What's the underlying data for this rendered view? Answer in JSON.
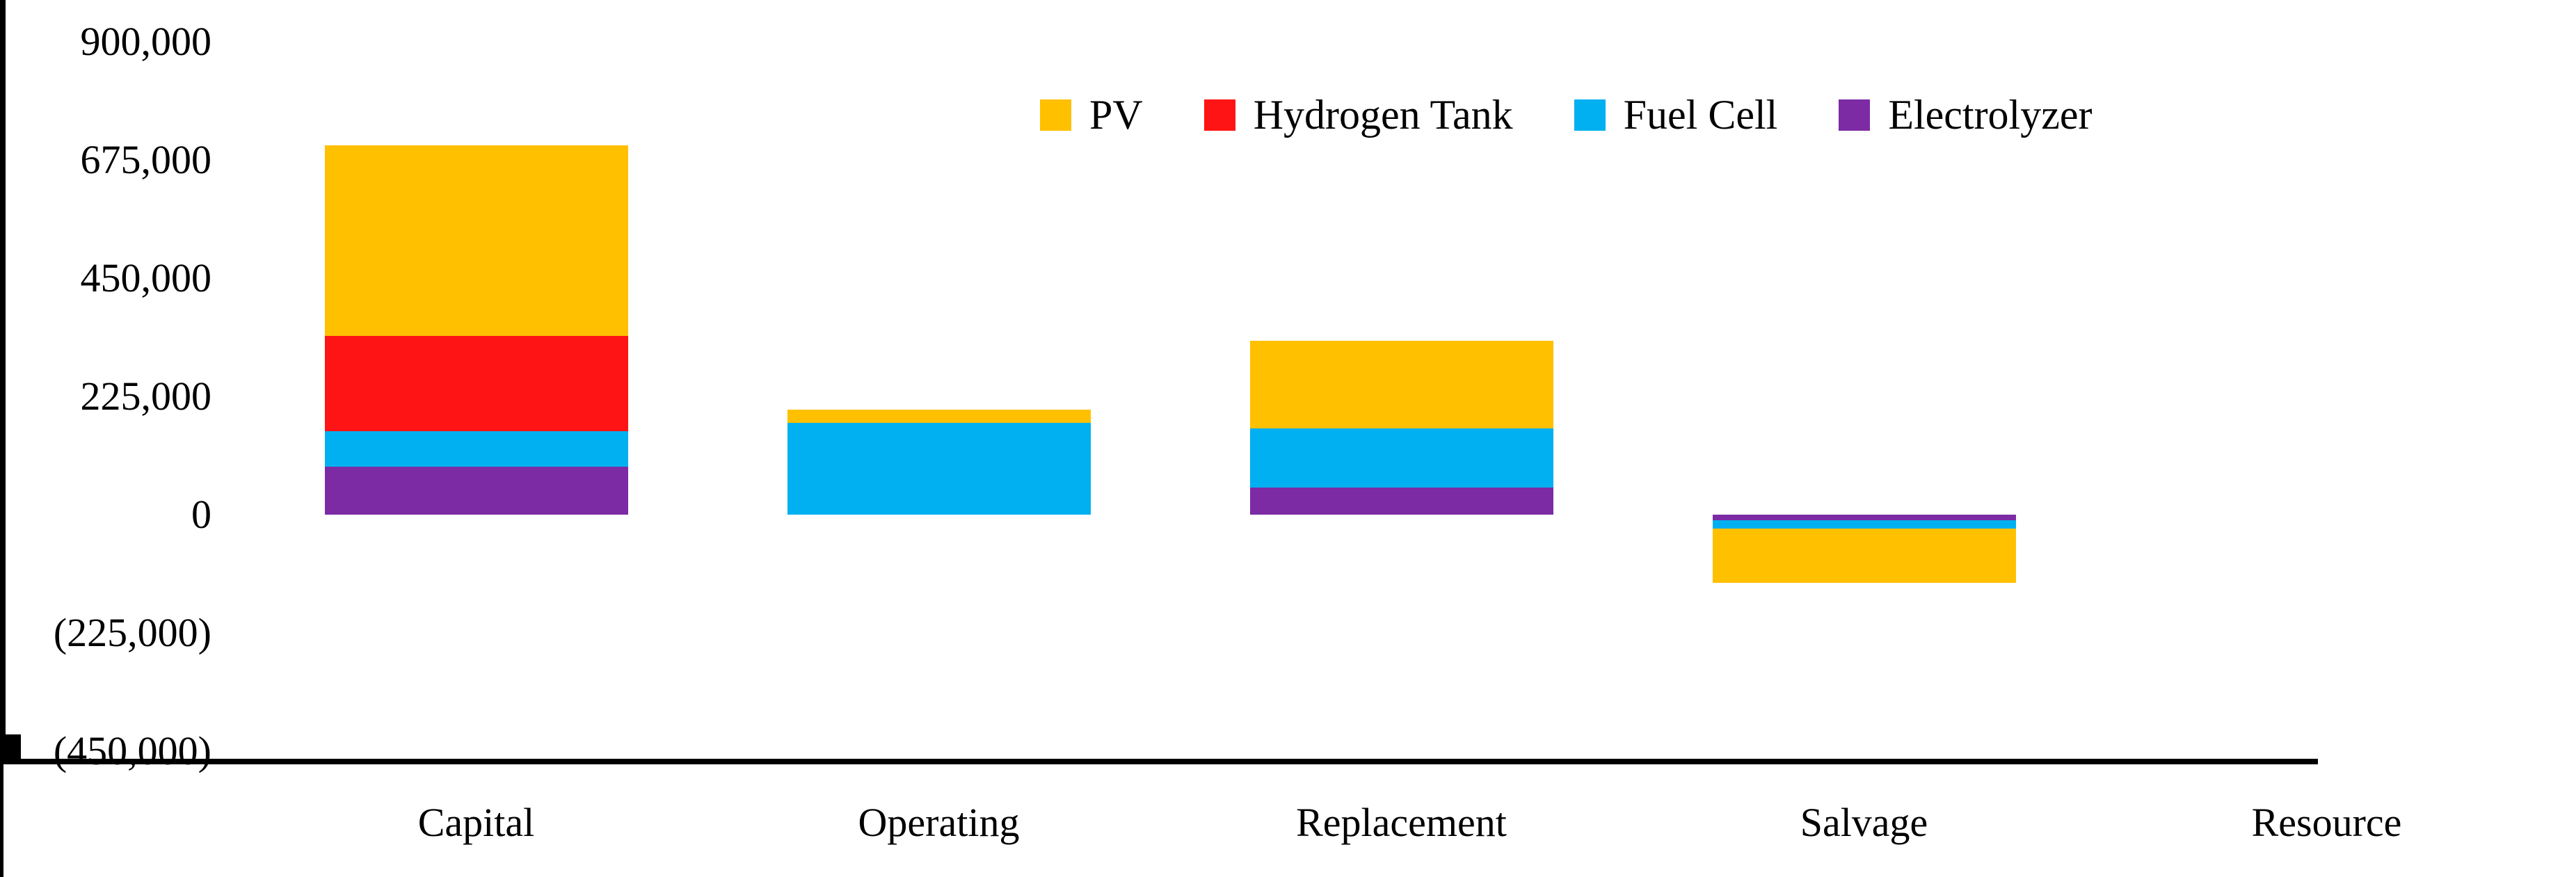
{
  "figure": {
    "background": "#FFFFFF",
    "text_color": "#000000"
  },
  "chart_data": {
    "type": "bar",
    "stacked": true,
    "title": "",
    "xlabel": "",
    "ylabel": "",
    "grid": false,
    "categories": [
      "Capital",
      "Operating",
      "Replacement",
      "Salvage",
      "Resource"
    ],
    "series": [
      {
        "name": "PV",
        "color": "#FFC000",
        "values": [
          363000,
          25000,
          167000,
          -103000,
          0
        ]
      },
      {
        "name": "Hydrogen Tank",
        "color": "#FE1414",
        "values": [
          181000,
          0,
          0,
          0,
          0
        ]
      },
      {
        "name": "Fuel Cell",
        "color": "#00B0F0",
        "values": [
          68000,
          175000,
          112000,
          -17000,
          0
        ]
      },
      {
        "name": "Electrolyzer",
        "color": "#7C2BA4",
        "values": [
          91000,
          0,
          52000,
          -10000,
          0
        ]
      }
    ],
    "stack_order_bottom_to_top": [
      "Electrolyzer",
      "Fuel Cell",
      "Hydrogen Tank",
      "PV"
    ],
    "y_axis": {
      "min": -450000,
      "max": 900000,
      "tick_interval": 225000,
      "ticks": [
        {
          "value": 900000,
          "label": "900,000"
        },
        {
          "value": 675000,
          "label": "675,000"
        },
        {
          "value": 450000,
          "label": "450,000"
        },
        {
          "value": 225000,
          "label": "225,000"
        },
        {
          "value": 0,
          "label": "0"
        },
        {
          "value": -225000,
          "label": "(225,000)"
        },
        {
          "value": -450000,
          "label": "(450,000)"
        }
      ]
    },
    "legend": {
      "position": "top",
      "entries": [
        "PV",
        "Hydrogen Tank",
        "Fuel Cell",
        "Electrolyzer"
      ]
    }
  }
}
